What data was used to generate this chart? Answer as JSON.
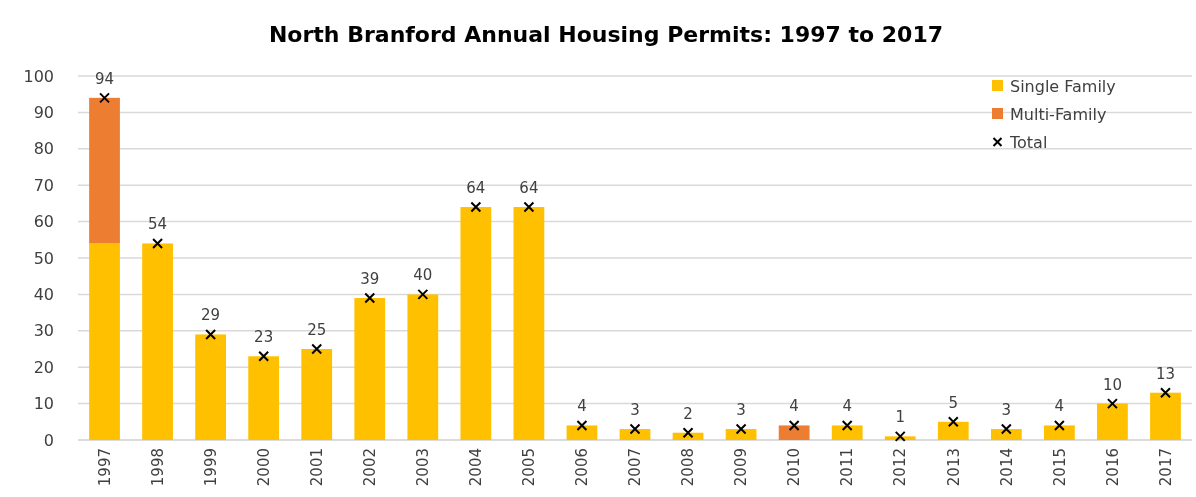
{
  "chart_data": {
    "type": "bar",
    "title": "North Branford Annual Housing Permits: 1997 to 2017",
    "categories": [
      "1997",
      "1998",
      "1999",
      "2000",
      "2001",
      "2002",
      "2003",
      "2004",
      "2005",
      "2006",
      "2007",
      "2008",
      "2009",
      "2010",
      "2011",
      "2012",
      "2013",
      "2014",
      "2015",
      "2016",
      "2017"
    ],
    "series": [
      {
        "name": "Single Family",
        "color": "#ffc000",
        "values": [
          54,
          54,
          29,
          23,
          25,
          39,
          40,
          64,
          64,
          4,
          3,
          2,
          3,
          0,
          4,
          1,
          5,
          3,
          4,
          10,
          13
        ]
      },
      {
        "name": "Multi-Family",
        "color": "#ed7d31",
        "values": [
          40,
          0,
          0,
          0,
          0,
          0,
          0,
          0,
          0,
          0,
          0,
          0,
          0,
          4,
          0,
          0,
          0,
          0,
          0,
          0,
          0
        ]
      },
      {
        "name": "Total",
        "type": "scatter",
        "marker": "cross",
        "color": "#000000",
        "values": [
          94,
          54,
          29,
          23,
          25,
          39,
          40,
          64,
          64,
          4,
          3,
          2,
          3,
          4,
          4,
          1,
          5,
          3,
          4,
          10,
          13
        ],
        "value_labels": [
          "94",
          "54",
          "29",
          "23",
          "25",
          "39",
          "40",
          "64",
          "64",
          "4",
          "3",
          "2",
          "3",
          "4",
          "4",
          "1",
          "5",
          "3",
          "4",
          "10",
          "13"
        ]
      }
    ],
    "stacked": true,
    "ylim": [
      0,
      100
    ],
    "yticks": [
      0,
      10,
      20,
      30,
      40,
      50,
      60,
      70,
      80,
      90,
      100
    ],
    "grid": "y",
    "legend": "top right"
  }
}
